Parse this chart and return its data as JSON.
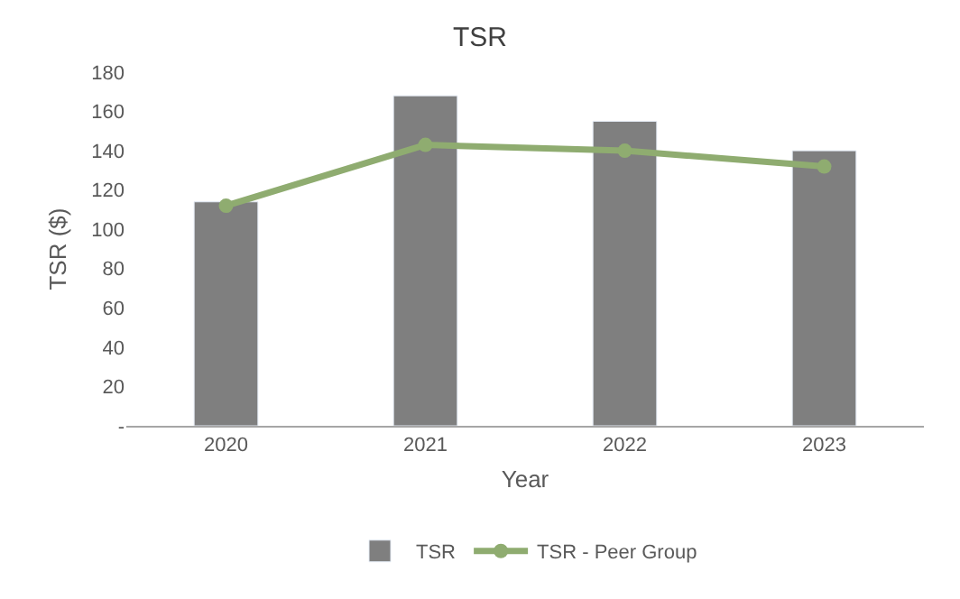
{
  "chart_data": {
    "type": "bar",
    "title": "TSR",
    "xlabel": "Year",
    "ylabel": "TSR ($)",
    "categories": [
      "2020",
      "2021",
      "2022",
      "2023"
    ],
    "series": [
      {
        "name": "TSR",
        "color": "#7f7f7f",
        "values": [
          114,
          168,
          155,
          140
        ]
      },
      {
        "name": "TSR - Peer Group",
        "type": "line",
        "color": "#8fac70",
        "marker": "circle",
        "values": [
          112,
          143,
          140,
          132
        ]
      }
    ],
    "ylim": [
      0,
      180
    ],
    "yticks": [
      {
        "value": 0,
        "label": "-"
      },
      20,
      40,
      60,
      80,
      100,
      120,
      140,
      160,
      180
    ],
    "grid": false,
    "legend": "bottom"
  }
}
